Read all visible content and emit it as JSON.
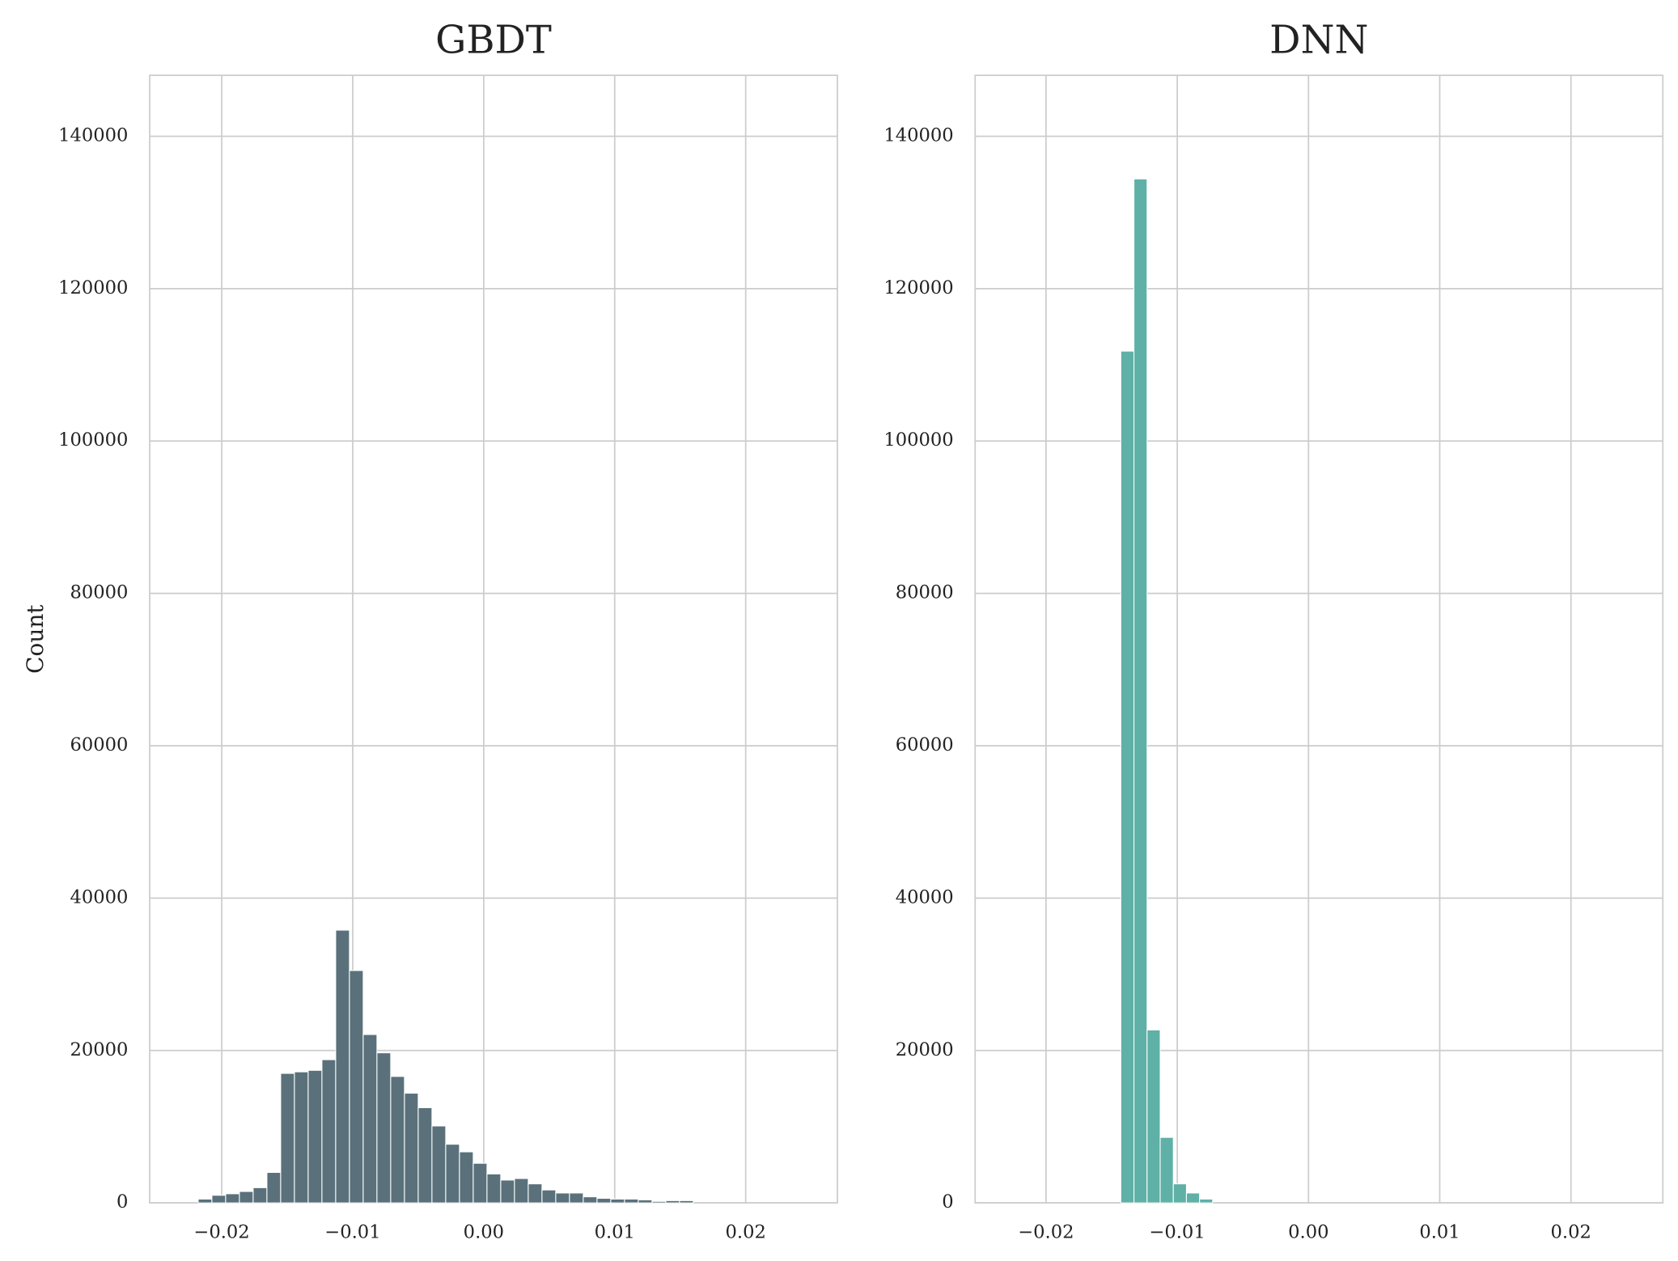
{
  "chart_data": [
    {
      "type": "histogram",
      "title": "GBDT",
      "ylabel": "Count",
      "color": "#5a717b",
      "grid": true,
      "bins": [
        -0.0218,
        -0.02075,
        -0.0197,
        -0.01865,
        -0.0176,
        -0.01655,
        -0.0155,
        -0.01445,
        -0.0134,
        -0.01235,
        -0.0113,
        -0.01025,
        -0.0092,
        -0.00815,
        -0.0071,
        -0.00605,
        -0.005,
        -0.00395,
        -0.0029,
        -0.00185,
        -0.0008,
        0.00025,
        0.0013,
        0.00235,
        0.0034,
        0.00445,
        0.0055,
        0.00655,
        0.0076,
        0.00865,
        0.0097,
        0.01075,
        0.0118,
        0.01285,
        0.0139,
        0.01495,
        0.016
      ],
      "counts": [
        500,
        1000,
        1200,
        1500,
        2000,
        4000,
        17000,
        17200,
        17400,
        18800,
        35800,
        30500,
        22100,
        19700,
        16600,
        14400,
        12500,
        10100,
        7700,
        6700,
        5200,
        3800,
        3000,
        3200,
        2500,
        1700,
        1300,
        1300,
        800,
        600,
        500,
        500,
        400,
        200,
        300,
        300
      ],
      "xlim": [
        -0.0255,
        0.027
      ],
      "ylim": [
        0,
        148000
      ],
      "xticks": [
        {
          "value": -0.02,
          "label": "−0.02"
        },
        {
          "value": -0.01,
          "label": "−0.01"
        },
        {
          "value": 0,
          "label": "0.00"
        },
        0.01,
        0.02
      ],
      "yticks": [
        0,
        20000,
        40000,
        60000,
        80000,
        100000,
        120000,
        140000
      ]
    },
    {
      "type": "histogram",
      "title": "DNN",
      "color": "#5fb0a6",
      "grid": true,
      "bins": [
        -0.0143,
        -0.0133,
        -0.0123,
        -0.0113,
        -0.0103,
        -0.0093,
        -0.0083,
        -0.0073
      ],
      "counts": [
        111800,
        134400,
        22700,
        8600,
        2500,
        1300,
        500
      ],
      "xlim": [
        -0.0254,
        0.027
      ],
      "ylim": [
        0,
        148000
      ],
      "xticks": [
        {
          "value": -0.02,
          "label": "−0.02"
        },
        {
          "value": -0.01,
          "label": "−0.01"
        },
        {
          "value": 0,
          "label": "0.00"
        },
        0.01,
        0.02
      ],
      "yticks": [
        0,
        20000,
        40000,
        60000,
        80000,
        100000,
        120000,
        140000
      ]
    }
  ]
}
